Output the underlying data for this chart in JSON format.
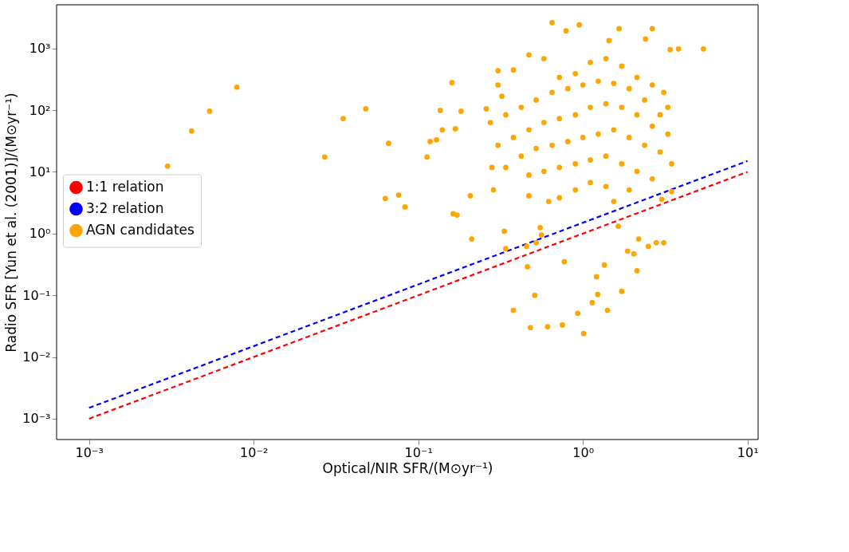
{
  "chart_data": {
    "type": "scatter",
    "xlabel": "Optical/NIR SFR/(M⊙yr⁻¹)",
    "ylabel": "Radio SFR [Yun et al. (2001)]/(M⊙yr⁻¹)",
    "log": "xy",
    "grid": false,
    "legend": "left",
    "xlim": [
      0.000635,
      11.6
    ],
    "ylim": [
      0.00046,
      5100
    ],
    "xticks": [
      {
        "value": 0.001,
        "label": "10⁻³"
      },
      {
        "value": 0.01,
        "label": "10⁻²"
      },
      {
        "value": 0.1,
        "label": "10⁻¹"
      },
      {
        "value": 1,
        "label": "10⁰"
      },
      {
        "value": 10,
        "label": "10¹"
      }
    ],
    "yticks": [
      {
        "value": 0.001,
        "label": "10⁻³"
      },
      {
        "value": 0.01,
        "label": "10⁻²"
      },
      {
        "value": 0.1,
        "label": "10⁻¹"
      },
      {
        "value": 1,
        "label": "10⁰"
      },
      {
        "value": 10,
        "label": "10¹"
      },
      {
        "value": 100,
        "label": "10²"
      },
      {
        "value": 1000,
        "label": "10³"
      }
    ],
    "series": [
      {
        "name": "1:1 relation",
        "type": "line",
        "line_style": "dashed",
        "color": "#ff0000",
        "x": [
          0.001,
          10
        ],
        "values": [
          0.001,
          10
        ]
      },
      {
        "name": "3:2 relation",
        "type": "line",
        "line_style": "dashed",
        "color": "#0000ff",
        "x": [
          0.001,
          10
        ],
        "values": [
          0.0015,
          15
        ]
      },
      {
        "name": "AGN candidates",
        "marker": "circle",
        "color": "#ffa500",
        "x": [
          0.003,
          0.0042,
          0.0054,
          0.0079,
          0.027,
          0.035,
          0.048,
          0.066,
          0.063,
          0.076,
          0.083,
          0.118,
          0.129,
          0.113,
          0.16,
          0.168,
          0.14,
          0.182,
          0.136,
          0.163,
          0.172,
          0.207,
          0.211,
          0.259,
          0.305,
          0.28,
          0.286,
          0.322,
          0.333,
          0.34,
          0.47,
          0.455,
          0.52,
          0.56,
          0.62,
          0.46,
          0.51,
          0.55,
          0.65,
          0.79,
          0.95,
          0.77,
          1.21,
          1.66,
          1.35,
          1.64,
          1.72,
          1.87,
          2.04,
          2.18,
          2.5,
          2.79,
          3.1,
          3.46,
          3.01,
          2.13,
          1.23,
          1.14,
          1.01,
          0.48,
          0.378,
          0.61,
          0.93,
          0.75,
          1.41,
          2.64,
          2.4,
          1.44,
          3.81,
          5.4,
          3.39,
          0.305,
          0.378,
          0.47,
          0.58,
          0.72,
          0.9,
          1.11,
          1.38,
          1.72,
          2.13,
          2.64,
          3.1,
          3.28,
          0.274,
          0.34,
          0.422,
          0.52,
          0.65,
          0.81,
          1.0,
          1.24,
          1.54,
          1.91,
          2.37,
          2.94,
          0.305,
          0.378,
          0.47,
          0.58,
          0.72,
          0.9,
          1.11,
          1.38,
          1.72,
          2.13,
          2.64,
          3.28,
          0.34,
          0.422,
          0.52,
          0.65,
          0.81,
          1.0,
          1.24,
          1.54,
          1.91,
          2.37,
          2.94,
          3.46,
          0.47,
          0.58,
          0.72,
          0.9,
          1.11,
          1.38,
          1.72,
          2.13,
          2.64,
          1.91,
          1.38,
          1.11,
          0.9,
          0.72,
          1.54
        ],
        "values": [
          12.4,
          46,
          96,
          236,
          17.4,
          73,
          105,
          29,
          3.7,
          4.2,
          2.7,
          31,
          33,
          17.4,
          279,
          50,
          48,
          96,
          99,
          2.1,
          2.0,
          4.1,
          0.82,
          105,
          436,
          11.8,
          5.1,
          168,
          1.09,
          0.57,
          4.1,
          0.62,
          0.71,
          0.95,
          3.3,
          0.29,
          0.1,
          1.25,
          2620,
          1930,
          2410,
          0.35,
          0.2,
          2090,
          0.31,
          1.32,
          0.116,
          0.52,
          0.47,
          0.82,
          0.62,
          0.71,
          0.71,
          4.8,
          3.6,
          0.25,
          0.103,
          0.076,
          0.024,
          0.03,
          0.057,
          0.031,
          0.051,
          0.033,
          0.057,
          2090,
          1420,
          1340,
          984,
          984,
          957,
          256,
          449,
          786,
          684,
          339,
          390,
          594,
          684,
          516,
          339,
          256,
          194,
          111,
          63,
          84,
          111,
          146,
          194,
          223,
          256,
          295,
          271,
          223,
          146,
          84,
          27,
          36,
          48,
          63,
          73,
          84,
          111,
          127,
          111,
          84,
          55,
          41,
          11.8,
          18,
          24,
          27,
          31,
          36,
          41,
          48,
          36,
          27,
          21,
          13.5,
          8.9,
          10.2,
          11.8,
          13.5,
          15.6,
          18,
          13.5,
          10.2,
          7.7,
          5.1,
          5.8,
          6.7,
          5.1,
          3.8,
          3.3
        ]
      }
    ]
  }
}
